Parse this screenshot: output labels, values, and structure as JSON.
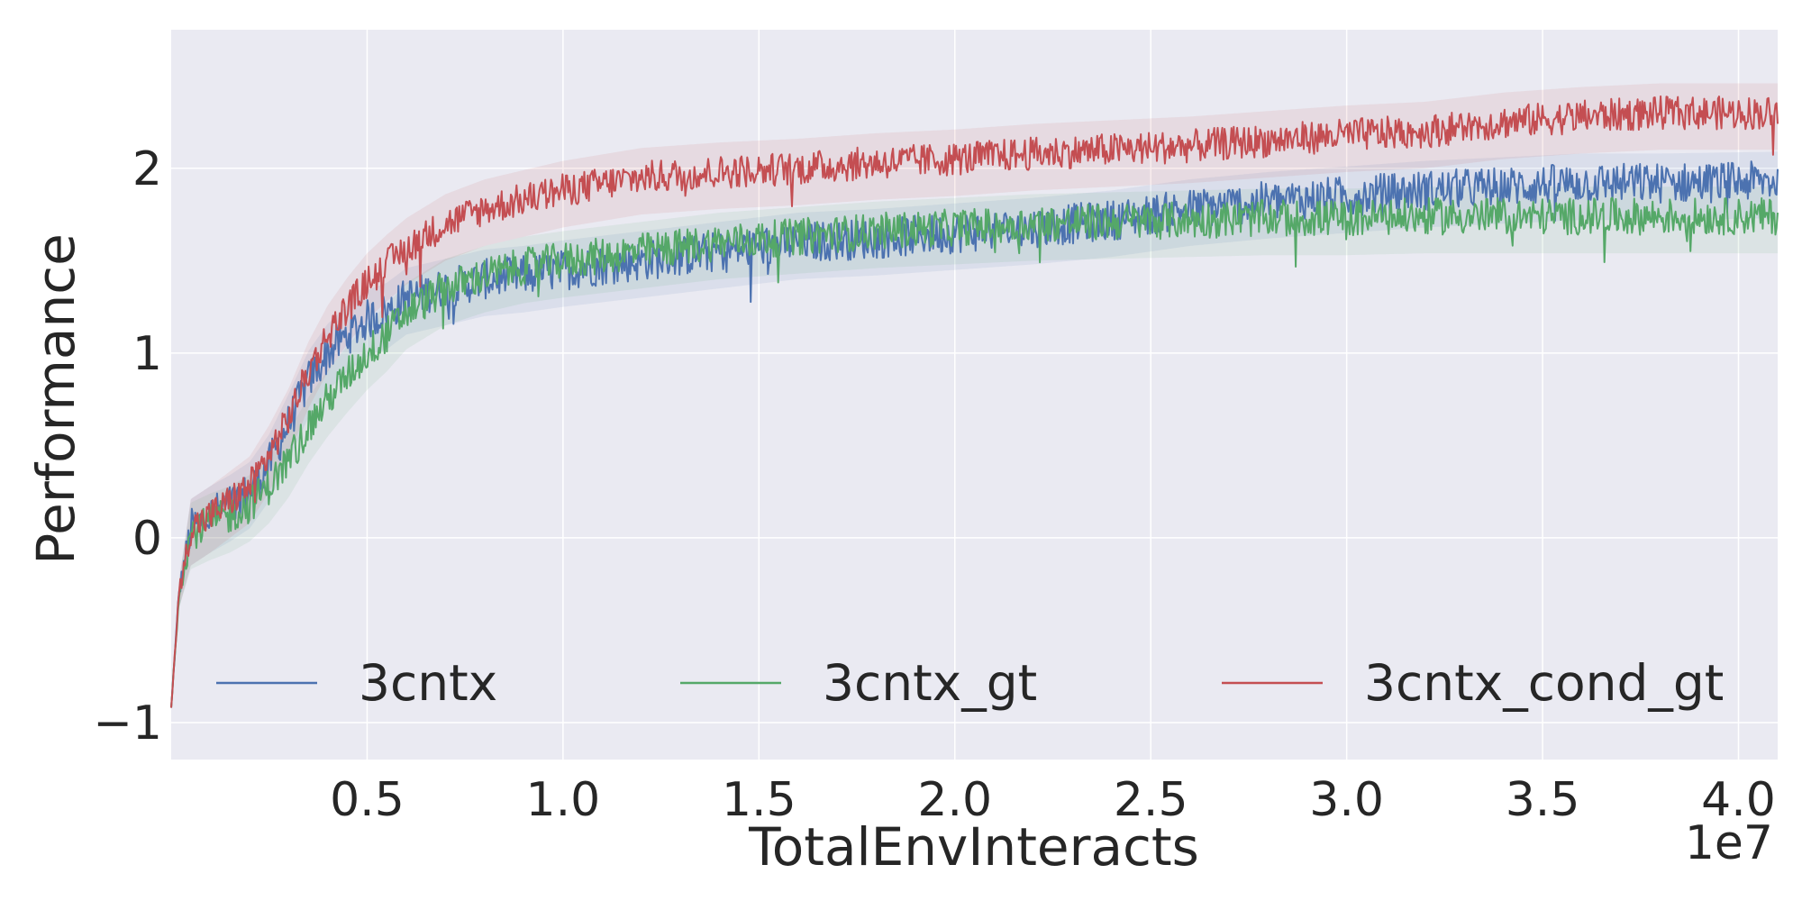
{
  "chart_data": {
    "type": "line",
    "title": "",
    "xlabel": "TotalEnvInteracts",
    "ylabel": "Performance",
    "x_offset_label": "1e7",
    "xlim": [
      0.0,
      4.1
    ],
    "ylim": [
      -1.2,
      2.75
    ],
    "xticks": [
      0.5,
      1.0,
      1.5,
      2.0,
      2.5,
      3.0,
      3.5,
      4.0
    ],
    "xtick_labels": [
      "0.5",
      "1.0",
      "1.5",
      "2.0",
      "2.5",
      "3.0",
      "3.5",
      "4.0"
    ],
    "yticks": [
      -1,
      0,
      1,
      2
    ],
    "ytick_labels": [
      "−1",
      "0",
      "1",
      "2"
    ],
    "grid": true,
    "legend_position": "lower center",
    "background_color": "#eaeaf2",
    "x": [
      0.0,
      0.02,
      0.05,
      0.1,
      0.15,
      0.2,
      0.25,
      0.3,
      0.35,
      0.4,
      0.45,
      0.5,
      0.55,
      0.6,
      0.7,
      0.8,
      0.9,
      1.0,
      1.2,
      1.4,
      1.6,
      1.8,
      2.0,
      2.2,
      2.4,
      2.6,
      2.8,
      3.0,
      3.2,
      3.4,
      3.6,
      3.8,
      4.1
    ],
    "series": [
      {
        "name": "3cntx",
        "color": "#4c72b0",
        "values": [
          -0.92,
          -0.3,
          0.05,
          0.12,
          0.18,
          0.25,
          0.4,
          0.62,
          0.85,
          1.0,
          1.1,
          1.18,
          1.22,
          1.3,
          1.35,
          1.4,
          1.42,
          1.45,
          1.5,
          1.55,
          1.6,
          1.62,
          1.65,
          1.68,
          1.72,
          1.78,
          1.82,
          1.85,
          1.88,
          1.9,
          1.92,
          1.92,
          1.93
        ]
      },
      {
        "name": "3cntx_gt",
        "color": "#55a868",
        "values": [
          -0.92,
          -0.3,
          0.03,
          0.08,
          0.12,
          0.18,
          0.28,
          0.42,
          0.6,
          0.75,
          0.88,
          1.0,
          1.1,
          1.22,
          1.35,
          1.42,
          1.47,
          1.5,
          1.55,
          1.6,
          1.63,
          1.66,
          1.68,
          1.7,
          1.71,
          1.72,
          1.73,
          1.73,
          1.74,
          1.74,
          1.74,
          1.74,
          1.74
        ]
      },
      {
        "name": "3cntx_cond_gt",
        "color": "#c44e52",
        "values": [
          -0.92,
          -0.3,
          0.05,
          0.12,
          0.2,
          0.28,
          0.45,
          0.65,
          0.9,
          1.1,
          1.25,
          1.38,
          1.48,
          1.57,
          1.7,
          1.78,
          1.83,
          1.88,
          1.95,
          1.98,
          2.0,
          2.03,
          2.05,
          2.08,
          2.1,
          2.12,
          2.15,
          2.18,
          2.2,
          2.25,
          2.28,
          2.3,
          2.3
        ]
      }
    ]
  }
}
